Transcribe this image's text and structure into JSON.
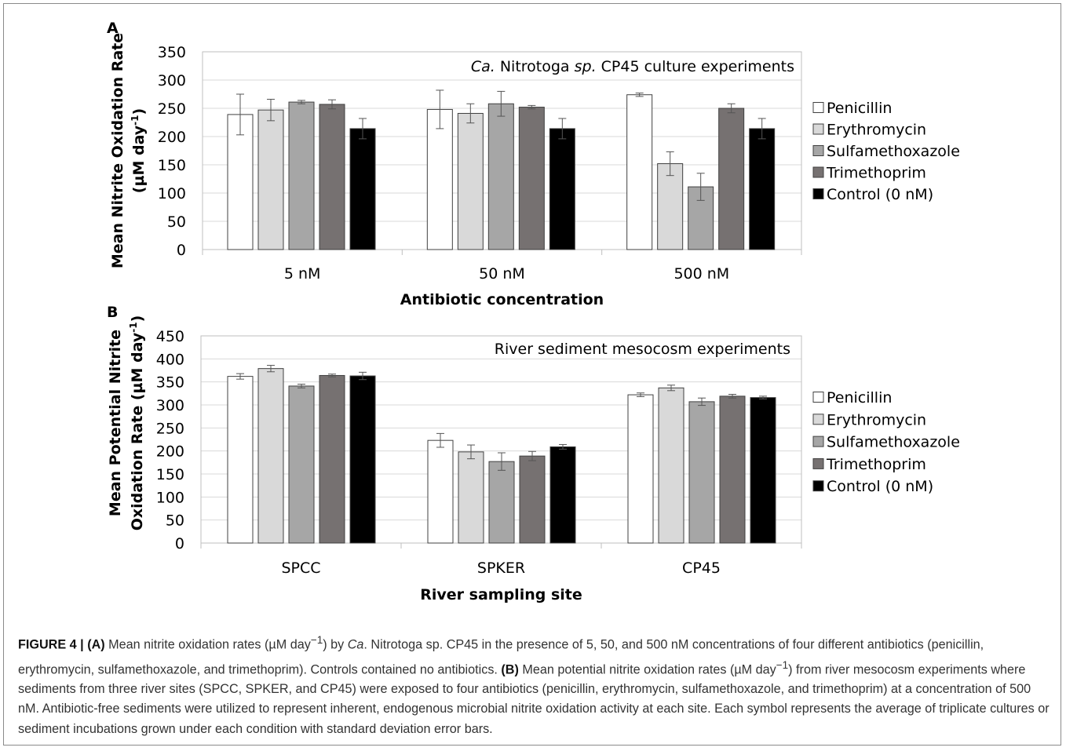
{
  "chart_data": [
    {
      "type": "bar",
      "panel_label": "A",
      "annotation": "Ca. Nitrotoga sp. CP45 culture experiments",
      "ylabel": "Mean Nitrite Oxidation Rate (µM day-1)",
      "xlabel": "Antibiotic concentration",
      "ylim": [
        0,
        350
      ],
      "yticks": [
        "0",
        "50",
        "100",
        "150",
        "200",
        "250",
        "300",
        "350"
      ],
      "categories": [
        "5 nM",
        "50 nM",
        "500 nM"
      ],
      "legend_position": "right",
      "grid": true,
      "series": [
        {
          "name": "Penicillin",
          "color": "#ffffff",
          "values": [
            239,
            248,
            274
          ],
          "errors": [
            36,
            34,
            3
          ]
        },
        {
          "name": "Erythromycin",
          "color": "#d9d9d9",
          "values": [
            247,
            241,
            152
          ],
          "errors": [
            19,
            17,
            21
          ]
        },
        {
          "name": "Sulfamethoxazole",
          "color": "#a6a6a6",
          "values": [
            261,
            258,
            111
          ],
          "errors": [
            3,
            22,
            24
          ]
        },
        {
          "name": "Trimethoprim",
          "color": "#767171",
          "values": [
            257,
            252,
            250
          ],
          "errors": [
            8,
            3,
            8
          ]
        },
        {
          "name": "Control (0 nM)",
          "color": "#000000",
          "values": [
            214,
            214,
            214
          ],
          "errors": [
            18,
            18,
            18
          ]
        }
      ]
    },
    {
      "type": "bar",
      "panel_label": "B",
      "annotation": "River sediment mesocosm experiments",
      "ylabel": "Mean Potential Nitrite Oxidation Rate (µM day-1)",
      "xlabel": "River sampling site",
      "ylim": [
        0,
        450
      ],
      "yticks": [
        "0",
        "50",
        "100",
        "150",
        "200",
        "250",
        "300",
        "350",
        "400",
        "450"
      ],
      "categories": [
        "SPCC",
        "SPKER",
        "CP45"
      ],
      "legend_position": "right",
      "grid": true,
      "series": [
        {
          "name": "Penicillin",
          "color": "#ffffff",
          "values": [
            362,
            223,
            322
          ],
          "errors": [
            6,
            15,
            4
          ]
        },
        {
          "name": "Erythromycin",
          "color": "#d9d9d9",
          "values": [
            379,
            198,
            337
          ],
          "errors": [
            7,
            15,
            6
          ]
        },
        {
          "name": "Sulfamethoxazole",
          "color": "#a6a6a6",
          "values": [
            341,
            177,
            307
          ],
          "errors": [
            4,
            19,
            8
          ]
        },
        {
          "name": "Trimethoprim",
          "color": "#767171",
          "values": [
            364,
            189,
            319
          ],
          "errors": [
            3,
            10,
            4
          ]
        },
        {
          "name": "Control (0 nM)",
          "color": "#000000",
          "values": [
            363,
            209,
            316
          ],
          "errors": [
            8,
            5,
            3
          ]
        }
      ]
    }
  ],
  "caption": {
    "figure_label": "FIGURE 4 | ",
    "a_label": "(A)",
    "a_text_1": " Mean nitrite oxidation rates (µM day",
    "a_text_2": ") by ",
    "a_text_italic": "Ca",
    "a_text_3": ". Nitrotoga sp. CP45 in the presence of 5, 50, and 500 nM concentrations of four different antibiotics (penicillin, erythromycin, sulfamethoxazole, and trimethoprim). Controls contained no antibiotics. ",
    "b_label": "(B)",
    "b_text_1": " Mean potential nitrite oxidation rates (µM day",
    "b_text_2": ") from river mesocosm experiments where sediments from three river sites (SPCC, SPKER, and CP45) were exposed to four antibiotics (penicillin, erythromycin, sulfamethoxazole, and trimethoprim) at a concentration of 500 nM. Antibiotic-free sediments were utilized to represent inherent, endogenous microbial nitrite oxidation activity at each site. Each symbol represents the average of triplicate cultures or sediment incubations grown under each condition with standard deviation error bars.",
    "superscript": "−1"
  }
}
